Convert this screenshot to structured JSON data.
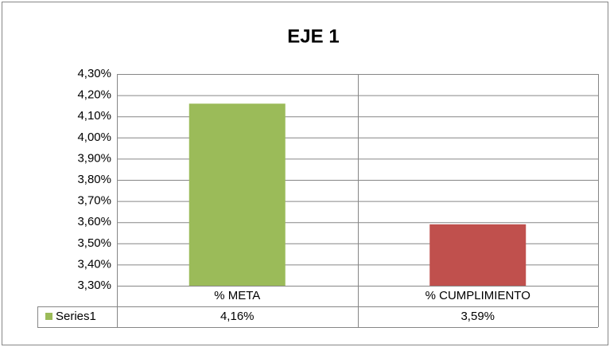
{
  "chart_data": {
    "type": "bar",
    "title": "EJE 1",
    "categories": [
      "% META",
      "% CUMPLIMIENTO"
    ],
    "series": [
      {
        "name": "Series1",
        "color": "#9bbb59",
        "colors": [
          "#9bbb59",
          "#c0504d"
        ],
        "values": [
          4.16,
          3.59
        ],
        "value_labels": [
          "4,16%",
          "3,59%"
        ]
      }
    ],
    "ylim": [
      3.3,
      4.3
    ],
    "yticks": [
      {
        "value": 3.3,
        "label": "3,30%"
      },
      {
        "value": 3.4,
        "label": "3,40%"
      },
      {
        "value": 3.5,
        "label": "3,50%"
      },
      {
        "value": 3.6,
        "label": "3,60%"
      },
      {
        "value": 3.7,
        "label": "3,70%"
      },
      {
        "value": 3.8,
        "label": "3,80%"
      },
      {
        "value": 3.9,
        "label": "3,90%"
      },
      {
        "value": 4.0,
        "label": "4,00%"
      },
      {
        "value": 4.1,
        "label": "4,10%"
      },
      {
        "value": 4.2,
        "label": "4,20%"
      },
      {
        "value": 4.3,
        "label": "4,30%"
      }
    ],
    "grid": true
  }
}
